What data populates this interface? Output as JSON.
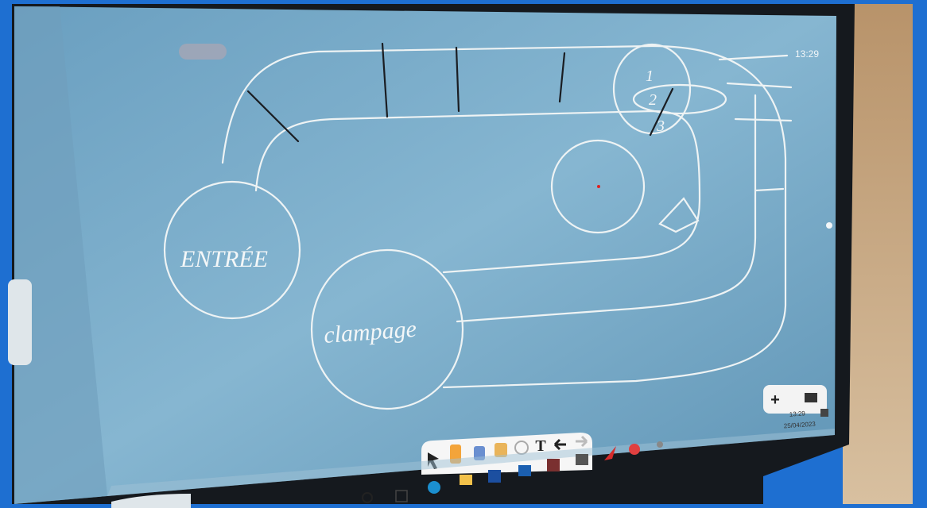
{
  "screen": {
    "clock": "13:29",
    "drawing": {
      "labels": [
        "ENTRÉE",
        "clampage",
        "1",
        "2",
        "3"
      ]
    },
    "taskbar": {
      "time": "13:29",
      "date": "25/04/2023"
    }
  }
}
